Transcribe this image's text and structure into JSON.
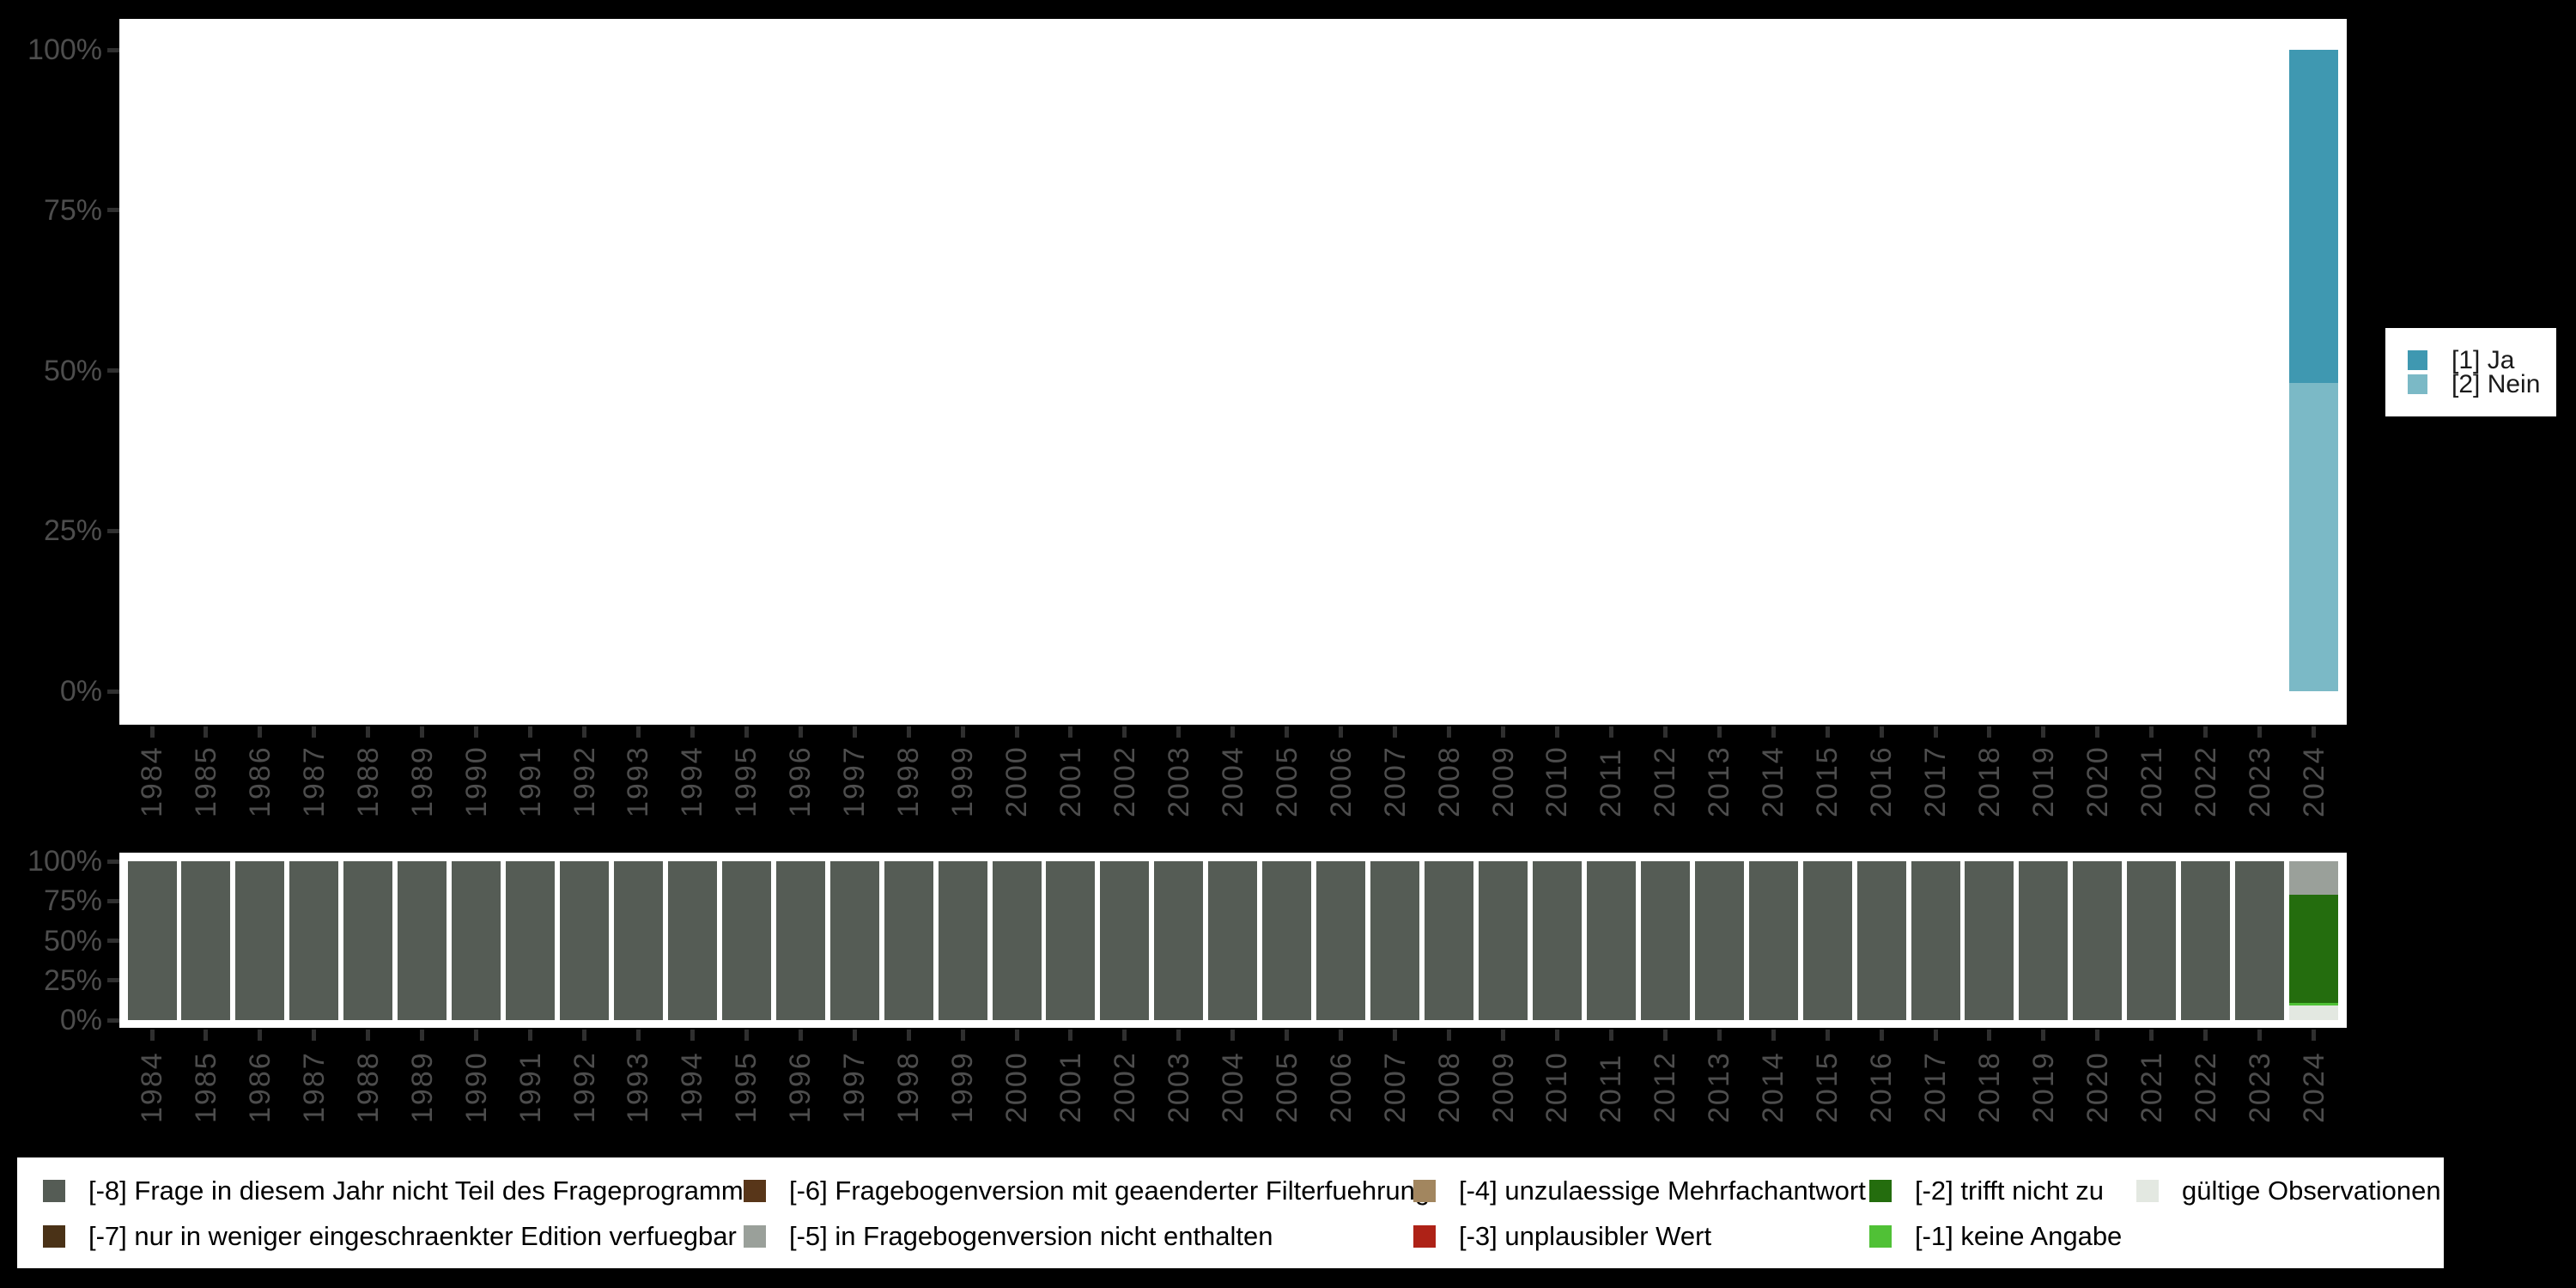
{
  "colors": {
    "background": "#000000",
    "panel": "#ffffff",
    "axis_text": "#4d4d4d",
    "tick": "#2f2f2f",
    "ja": "#3f98b1",
    "nein": "#7bb9c6",
    "m8": "#555c55",
    "m7": "#4a3217",
    "m6": "#583619",
    "m5": "#9aa09a",
    "m4": "#a2865f",
    "m3": "#ae2217",
    "m2": "#246d0e",
    "m1": "#50c136",
    "valid": "#e3e8e1"
  },
  "chart_data": [
    {
      "type": "bar",
      "stacked": true,
      "title": "",
      "xlabel": "",
      "ylabel": "",
      "grid": false,
      "legend_position": "right",
      "ylim": [
        0,
        100
      ],
      "ytick_labels": [
        "0%",
        "25%",
        "50%",
        "75%",
        "100%"
      ],
      "ytick_values": [
        0,
        25,
        50,
        75,
        100
      ],
      "categories": [
        "1984",
        "1985",
        "1986",
        "1987",
        "1988",
        "1989",
        "1990",
        "1991",
        "1992",
        "1993",
        "1994",
        "1995",
        "1996",
        "1997",
        "1998",
        "1999",
        "2000",
        "2001",
        "2002",
        "2003",
        "2004",
        "2005",
        "2006",
        "2007",
        "2008",
        "2009",
        "2010",
        "2011",
        "2012",
        "2013",
        "2014",
        "2015",
        "2016",
        "2017",
        "2018",
        "2019",
        "2020",
        "2021",
        "2022",
        "2023",
        "2024"
      ],
      "series": [
        {
          "name": "[1] Ja",
          "color_key": "ja",
          "values_by_year": {
            "2024": 52
          }
        },
        {
          "name": "[2] Nein",
          "color_key": "nein",
          "values_by_year": {
            "2024": 48
          }
        }
      ]
    },
    {
      "type": "bar",
      "stacked": true,
      "title": "",
      "xlabel": "",
      "ylabel": "",
      "grid": false,
      "legend_position": "bottom",
      "ylim": [
        0,
        100
      ],
      "ytick_labels": [
        "0%",
        "25%",
        "50%",
        "75%",
        "100%"
      ],
      "ytick_values": [
        0,
        25,
        50,
        75,
        100
      ],
      "categories": [
        "1984",
        "1985",
        "1986",
        "1987",
        "1988",
        "1989",
        "1990",
        "1991",
        "1992",
        "1993",
        "1994",
        "1995",
        "1996",
        "1997",
        "1998",
        "1999",
        "2000",
        "2001",
        "2002",
        "2003",
        "2004",
        "2005",
        "2006",
        "2007",
        "2008",
        "2009",
        "2010",
        "2011",
        "2012",
        "2013",
        "2014",
        "2015",
        "2016",
        "2017",
        "2018",
        "2019",
        "2020",
        "2021",
        "2022",
        "2023",
        "2024"
      ],
      "series": [
        {
          "name": "[-8] Frage in diesem Jahr nicht Teil des Frageprogramms",
          "color_key": "m8",
          "values_by_year": {
            "1984": 100,
            "1985": 100,
            "1986": 100,
            "1987": 100,
            "1988": 100,
            "1989": 100,
            "1990": 100,
            "1991": 100,
            "1992": 100,
            "1993": 100,
            "1994": 100,
            "1995": 100,
            "1996": 100,
            "1997": 100,
            "1998": 100,
            "1999": 100,
            "2000": 100,
            "2001": 100,
            "2002": 100,
            "2003": 100,
            "2004": 100,
            "2005": 100,
            "2006": 100,
            "2007": 100,
            "2008": 100,
            "2009": 100,
            "2010": 100,
            "2011": 100,
            "2012": 100,
            "2013": 100,
            "2014": 100,
            "2015": 100,
            "2016": 100,
            "2017": 100,
            "2018": 100,
            "2019": 100,
            "2020": 100,
            "2021": 100,
            "2022": 100,
            "2023": 100
          }
        },
        {
          "name": "[-5] in Fragebogenversion nicht enthalten",
          "color_key": "m5",
          "values_by_year": {
            "2024": 21
          }
        },
        {
          "name": "[-2] trifft nicht zu",
          "color_key": "m2",
          "values_by_year": {
            "2024": 68
          }
        },
        {
          "name": "[-1] keine Angabe",
          "color_key": "m1",
          "values_by_year": {
            "2024": 2
          }
        },
        {
          "name": "gültige Observationen",
          "color_key": "valid",
          "values_by_year": {
            "2024": 9
          }
        }
      ]
    }
  ],
  "legend_right": {
    "entries": [
      {
        "label": "[1] Ja",
        "color_key": "ja"
      },
      {
        "label": "[2] Nein",
        "color_key": "nein"
      }
    ]
  },
  "legend_bottom": {
    "columns": [
      [
        {
          "label": "[-8] Frage in diesem Jahr nicht Teil des Frageprogramms",
          "color_key": "m8"
        },
        {
          "label": "[-7] nur in weniger eingeschraenkter Edition verfuegbar",
          "color_key": "m7"
        }
      ],
      [
        {
          "label": "[-6] Fragebogenversion mit geaenderter Filterfuehrung",
          "color_key": "m6"
        },
        {
          "label": "[-5] in Fragebogenversion nicht enthalten",
          "color_key": "m5"
        }
      ],
      [
        {
          "label": "[-4] unzulaessige Mehrfachantwort",
          "color_key": "m4"
        },
        {
          "label": "[-3] unplausibler Wert",
          "color_key": "m3"
        }
      ],
      [
        {
          "label": "[-2] trifft nicht zu",
          "color_key": "m2"
        },
        {
          "label": "[-1] keine Angabe",
          "color_key": "m1"
        }
      ],
      [
        {
          "label": "gültige Observationen",
          "color_key": "valid"
        }
      ]
    ]
  }
}
